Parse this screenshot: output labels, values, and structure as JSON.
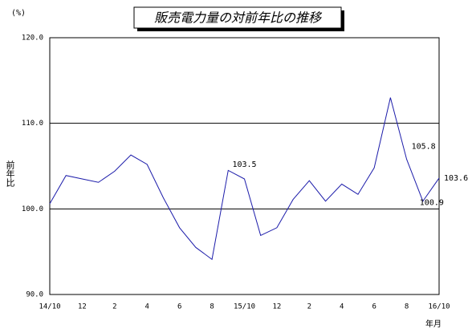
{
  "chart_data": {
    "type": "line",
    "title": "販売電力量の対前年比の推移",
    "y_unit": "(%)",
    "ylabel": "前年比",
    "xlabel": "年月",
    "categories": [
      "14/10",
      null,
      "12",
      null,
      "2",
      null,
      "4",
      null,
      "6",
      null,
      "8",
      null,
      "15/10",
      null,
      "12",
      null,
      "2",
      null,
      "4",
      null,
      "6",
      null,
      "8",
      null,
      "16/10"
    ],
    "series": [
      {
        "name": "前年比",
        "color": "#1c1caa",
        "values": [
          100.6,
          103.9,
          103.5,
          103.1,
          104.4,
          106.3,
          105.2,
          101.3,
          97.8,
          95.5,
          94.1,
          104.5,
          103.5,
          96.9,
          97.8,
          101.1,
          103.3,
          100.9,
          102.9,
          101.7,
          104.8,
          113.0,
          105.8,
          100.9,
          103.6
        ],
        "value_labels": [
          null,
          null,
          null,
          null,
          null,
          null,
          null,
          null,
          null,
          null,
          null,
          null,
          "103.5",
          null,
          null,
          null,
          null,
          null,
          null,
          null,
          null,
          null,
          "105.8",
          "100.9",
          "103.6"
        ]
      }
    ],
    "ylim": [
      90,
      120
    ],
    "yticks": [
      {
        "value": 90,
        "label": "90.0"
      },
      {
        "value": 100,
        "label": "100.0"
      },
      {
        "value": 110,
        "label": "110.0"
      },
      {
        "value": 120,
        "label": "120.0"
      }
    ],
    "grid": true
  }
}
